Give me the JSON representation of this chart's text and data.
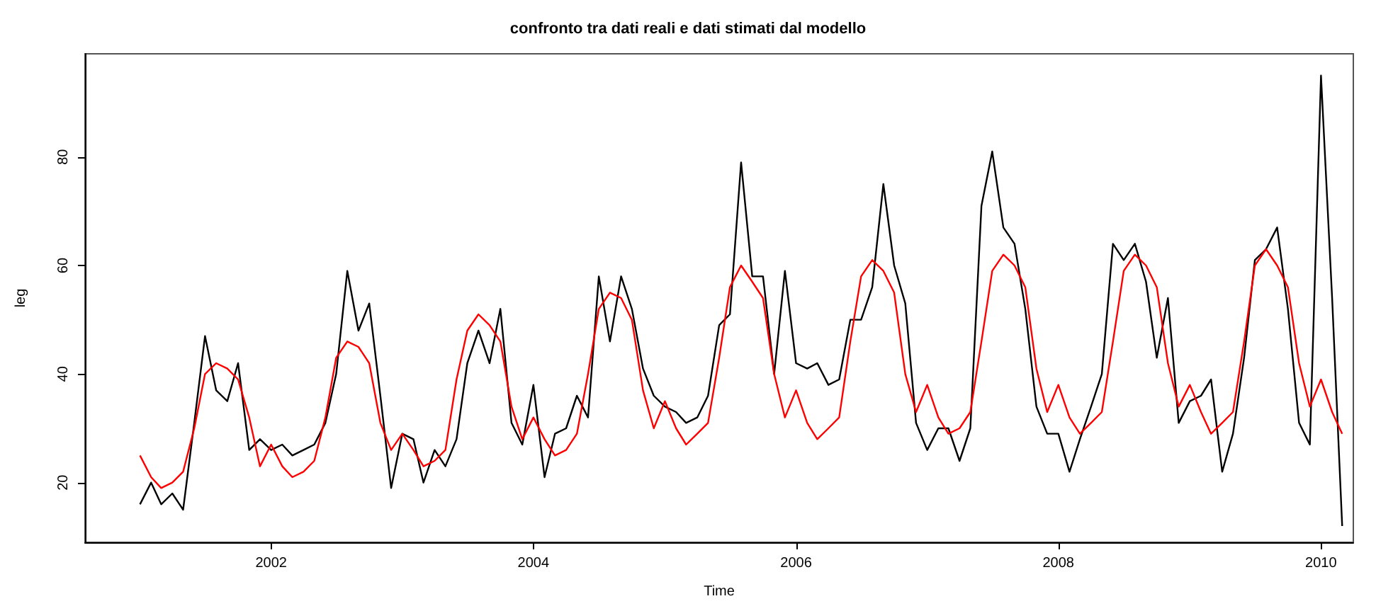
{
  "chart_data": {
    "type": "line",
    "title": "confronto tra dati reali e dati stimati dal modello",
    "xlabel": "Time",
    "ylabel": "leg",
    "x": [
      "2001-01",
      "2001-02",
      "2001-03",
      "2001-04",
      "2001-05",
      "2001-06",
      "2001-07",
      "2001-08",
      "2001-09",
      "2001-10",
      "2001-11",
      "2001-12",
      "2002-01",
      "2002-02",
      "2002-03",
      "2002-04",
      "2002-05",
      "2002-06",
      "2002-07",
      "2002-08",
      "2002-09",
      "2002-10",
      "2002-11",
      "2002-12",
      "2003-01",
      "2003-02",
      "2003-03",
      "2003-04",
      "2003-05",
      "2003-06",
      "2003-07",
      "2003-08",
      "2003-09",
      "2003-10",
      "2003-11",
      "2003-12",
      "2004-01",
      "2004-02",
      "2004-03",
      "2004-04",
      "2004-05",
      "2004-06",
      "2004-07",
      "2004-08",
      "2004-09",
      "2004-10",
      "2004-11",
      "2004-12",
      "2005-01",
      "2005-02",
      "2005-03",
      "2005-04",
      "2005-05",
      "2005-06",
      "2005-07",
      "2005-08",
      "2005-09",
      "2005-10",
      "2005-11",
      "2005-12",
      "2006-01",
      "2006-02",
      "2006-03",
      "2006-04",
      "2006-05",
      "2006-06",
      "2006-07",
      "2006-08",
      "2006-09",
      "2006-10",
      "2006-11",
      "2006-12",
      "2007-01",
      "2007-02",
      "2007-03",
      "2007-04",
      "2007-05",
      "2007-06",
      "2007-07",
      "2007-08",
      "2007-09",
      "2007-10",
      "2007-11",
      "2007-12",
      "2008-01",
      "2008-02",
      "2008-03",
      "2008-04",
      "2008-05",
      "2008-06",
      "2008-07",
      "2008-08",
      "2008-09",
      "2008-10",
      "2008-11",
      "2008-12",
      "2009-01",
      "2009-02",
      "2009-03",
      "2009-04",
      "2009-05",
      "2009-06",
      "2009-07",
      "2009-08",
      "2009-09",
      "2009-10",
      "2009-11",
      "2009-12",
      "2010-01",
      "2010-02",
      "2010-03"
    ],
    "series": [
      {
        "color": "#000000",
        "values": [
          16,
          20,
          16,
          18,
          15,
          31,
          47,
          37,
          35,
          42,
          26,
          28,
          26,
          27,
          25,
          26,
          27,
          31,
          40,
          59,
          48,
          53,
          36,
          19,
          29,
          28,
          20,
          26,
          23,
          28,
          42,
          48,
          42,
          52,
          31,
          27,
          38,
          21,
          29,
          30,
          36,
          32,
          58,
          46,
          58,
          52,
          41,
          36,
          34,
          33,
          31,
          32,
          36,
          49,
          51,
          79,
          58,
          58,
          40,
          59,
          42,
          41,
          42,
          38,
          39,
          50,
          50,
          56,
          75,
          60,
          53,
          31,
          26,
          30,
          30,
          24,
          30,
          71,
          81,
          67,
          64,
          52,
          34,
          29,
          29,
          22,
          28,
          34,
          40,
          64,
          61,
          64,
          57,
          43,
          54,
          31,
          35,
          36,
          39,
          22,
          29,
          43,
          61,
          63,
          67,
          52,
          31,
          27,
          95,
          54,
          12
        ]
      },
      {
        "color": "#ff0000",
        "values": [
          25,
          21,
          19,
          20,
          22,
          30,
          40,
          42,
          41,
          39,
          32,
          23,
          27,
          23,
          21,
          22,
          24,
          32,
          43,
          46,
          45,
          42,
          31,
          26,
          29,
          26,
          23,
          24,
          26,
          39,
          48,
          51,
          49,
          46,
          34,
          28,
          32,
          28,
          25,
          26,
          29,
          40,
          52,
          55,
          54,
          50,
          37,
          30,
          35,
          30,
          27,
          29,
          31,
          43,
          56,
          60,
          57,
          54,
          40,
          32,
          37,
          31,
          28,
          30,
          32,
          46,
          58,
          61,
          59,
          55,
          40,
          33,
          38,
          32,
          29,
          30,
          33,
          46,
          59,
          62,
          60,
          56,
          41,
          33,
          38,
          32,
          29,
          31,
          33,
          46,
          59,
          62,
          60,
          56,
          42,
          34,
          38,
          33,
          29,
          31,
          33,
          46,
          60,
          63,
          60,
          56,
          42,
          34,
          39,
          33,
          29
        ]
      }
    ],
    "xlim": [
      "2000-08",
      "2010-04"
    ],
    "xticks": [
      "2002",
      "2004",
      "2006",
      "2008",
      "2010"
    ],
    "ylim": [
      9,
      99
    ],
    "yticks": [
      20,
      40,
      60,
      80
    ],
    "marker": "none",
    "line_style": "solid"
  }
}
